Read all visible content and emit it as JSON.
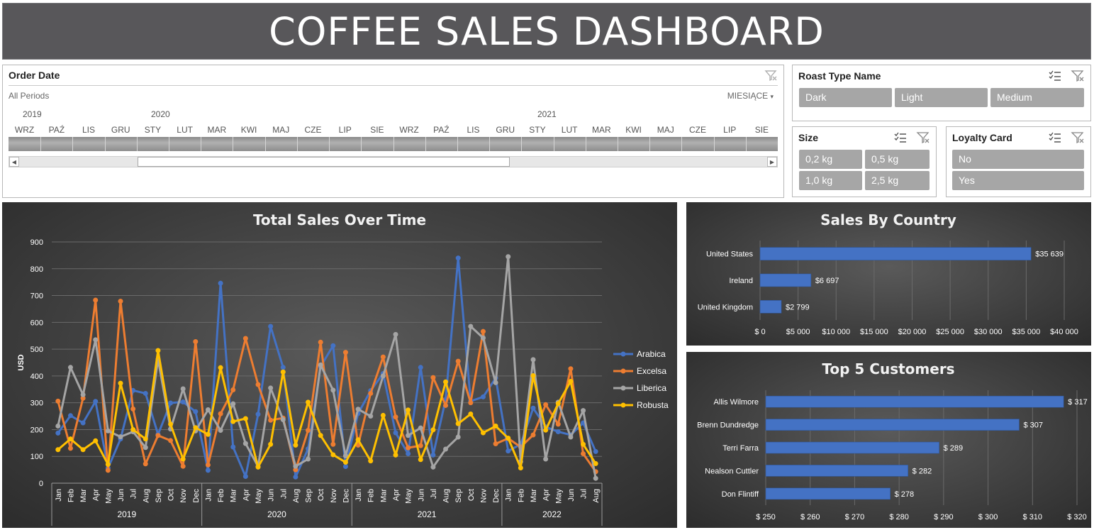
{
  "title": "COFFEE SALES DASHBOARD",
  "timeline": {
    "header": "Order Date",
    "period": "All Periods",
    "level": "MIESIĄCE",
    "years": [
      "2019",
      "2020",
      "2021"
    ],
    "months": [
      "WRZ",
      "PAŹ",
      "LIS",
      "GRU",
      "STY",
      "LUT",
      "MAR",
      "KWI",
      "MAJ",
      "CZE",
      "LIP",
      "SIE",
      "WRZ",
      "PAŹ",
      "LIS",
      "GRU",
      "STY",
      "LUT",
      "MAR",
      "KWI",
      "MAJ",
      "CZE",
      "LIP",
      "SIE"
    ]
  },
  "slicers": {
    "roast": {
      "header": "Roast Type Name",
      "items": [
        "Dark",
        "Light",
        "Medium"
      ]
    },
    "size": {
      "header": "Size",
      "items": [
        "0,2 kg",
        "0,5 kg",
        "1,0 kg",
        "2,5 kg"
      ]
    },
    "loyalty": {
      "header": "Loyalty Card",
      "items": [
        "No",
        "Yes"
      ]
    }
  },
  "colors": {
    "Arabica": "#4472c4",
    "Excelsa": "#ed7d31",
    "Liberica": "#a5a5a5",
    "Robusta": "#ffc000",
    "bar": "#4472c4"
  },
  "chart_data": [
    {
      "type": "line",
      "title": "Total Sales Over Time",
      "ylabel": "USD",
      "ylim": [
        0,
        900
      ],
      "yticks": [
        0,
        100,
        200,
        300,
        400,
        500,
        600,
        700,
        800,
        900
      ],
      "grid": true,
      "legend": "right",
      "months": [
        "Jan",
        "Feb",
        "Mar",
        "Apr",
        "May",
        "Jun",
        "Jul",
        "Aug",
        "Sep",
        "Oct",
        "Nov",
        "Dec",
        "Jan",
        "Feb",
        "Mar",
        "Apr",
        "May",
        "Jun",
        "Jul",
        "Aug",
        "Sep",
        "Oct",
        "Nov",
        "Dec",
        "Jan",
        "Feb",
        "Mar",
        "Apr",
        "May",
        "Jun",
        "Jul",
        "Aug",
        "Sep",
        "Oct",
        "Nov",
        "Dec",
        "Jan",
        "Feb",
        "Mar",
        "Apr",
        "May",
        "Jun",
        "Jul",
        "Aug"
      ],
      "years": [
        {
          "label": "2019",
          "count": 12
        },
        {
          "label": "2020",
          "count": 12
        },
        {
          "label": "2021",
          "count": 12
        },
        {
          "label": "2022",
          "count": 8
        }
      ],
      "series": [
        {
          "name": "Arabica",
          "values": [
            187,
            252,
            225,
            305,
            56,
            165,
            346,
            335,
            182,
            299,
            303,
            267,
            48,
            746,
            135,
            25,
            257,
            585,
            432,
            23,
            128,
            435,
            513,
            62,
            260,
            345,
            409,
            188,
            110,
            432,
            105,
            312,
            840,
            306,
            322,
            392,
            120,
            145,
            280,
            210,
            192,
            180,
            225,
            118
          ]
        },
        {
          "name": "Excelsa",
          "values": [
            306,
            130,
            317,
            683,
            48,
            679,
            277,
            72,
            178,
            159,
            63,
            528,
            68,
            259,
            348,
            540,
            368,
            235,
            243,
            50,
            197,
            526,
            145,
            488,
            142,
            335,
            471,
            247,
            132,
            140,
            394,
            290,
            455,
            300,
            566,
            147,
            167,
            135,
            180,
            293,
            220,
            427,
            110,
            43
          ]
        },
        {
          "name": "Liberica",
          "values": [
            213,
            432,
            330,
            535,
            195,
            173,
            192,
            133,
            462,
            202,
            352,
            195,
            274,
            197,
            296,
            148,
            62,
            355,
            237,
            63,
            90,
            441,
            347,
            102,
            276,
            250,
            400,
            555,
            178,
            206,
            60,
            127,
            172,
            585,
            542,
            375,
            845,
            80,
            461,
            90,
            302,
            172,
            271,
            18
          ]
        },
        {
          "name": "Robusta",
          "values": [
            125,
            165,
            125,
            158,
            70,
            373,
            200,
            165,
            495,
            220,
            90,
            207,
            182,
            431,
            230,
            241,
            60,
            145,
            415,
            142,
            302,
            178,
            106,
            78,
            162,
            83,
            253,
            105,
            273,
            88,
            199,
            378,
            222,
            258,
            188,
            213,
            168,
            57,
            401,
            198,
            297,
            380,
            145,
            73
          ]
        }
      ]
    },
    {
      "type": "bar",
      "title": "Sales By Country",
      "categories": [
        "United States",
        "Ireland",
        "United Kingdom"
      ],
      "values": [
        35639,
        6697,
        2799
      ],
      "data_labels": [
        "$35 639",
        "$6 697",
        "$2 799"
      ],
      "xlim": [
        0,
        40000
      ],
      "xticks": [
        "$ 0",
        "$5 000",
        "$10 000",
        "$15 000",
        "$20 000",
        "$25 000",
        "$30 000",
        "$35 000",
        "$40 000"
      ],
      "grid": true
    },
    {
      "type": "bar",
      "title": "Top 5 Customers",
      "categories": [
        "Allis Wilmore",
        "Brenn Dundredge",
        "Terri Farra",
        "Nealson Cuttler",
        "Don Flintiff"
      ],
      "values": [
        317,
        307,
        289,
        282,
        278
      ],
      "data_labels": [
        "$ 317",
        "$ 307",
        "$ 289",
        "$ 282",
        "$ 278"
      ],
      "xlim": [
        250,
        320
      ],
      "xticks": [
        "$ 250",
        "$ 260",
        "$ 270",
        "$ 280",
        "$ 290",
        "$ 300",
        "$ 310",
        "$ 320"
      ],
      "grid": true
    }
  ]
}
